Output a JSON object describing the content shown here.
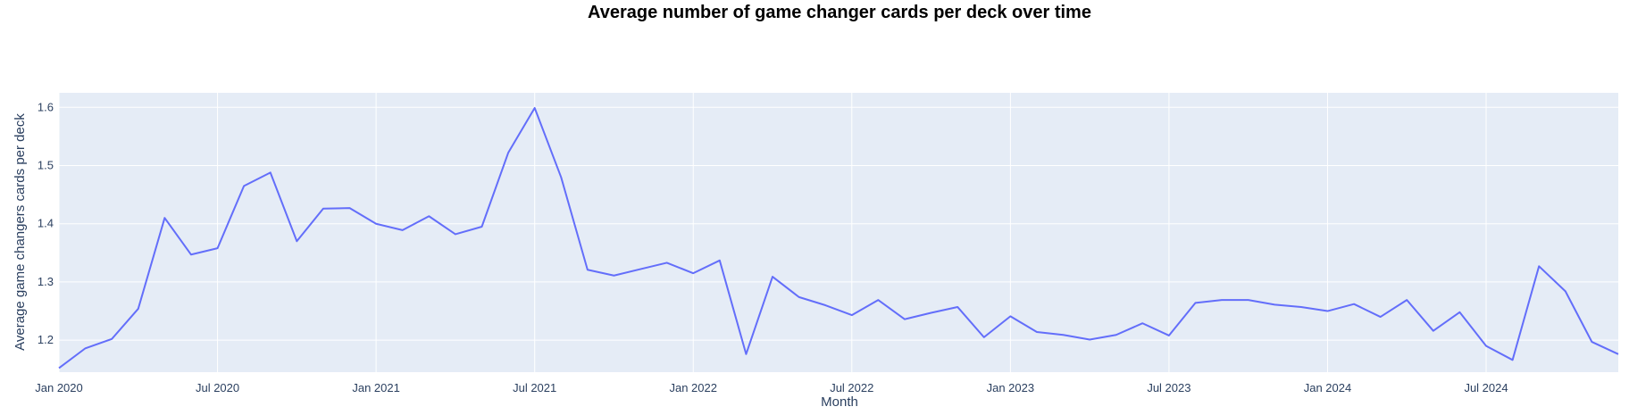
{
  "chart_data": {
    "type": "line",
    "title": "Average number of game changer cards per deck over time",
    "xlabel": "Month",
    "ylabel": "Average game changers cards per deck",
    "x_tick_labels": [
      "Jan 2020",
      "Jul 2020",
      "Jan 2021",
      "Jul 2021",
      "Jan 2022",
      "Jul 2022",
      "Jan 2023",
      "Jul 2023",
      "Jan 2024",
      "Jul 2024"
    ],
    "y_tick_labels": [
      "1.2",
      "1.3",
      "1.4",
      "1.5",
      "1.6"
    ],
    "y_ticks": [
      1.2,
      1.3,
      1.4,
      1.5,
      1.6
    ],
    "ylim": [
      1.145,
      1.625
    ],
    "x_range": [
      "2020-01",
      "2024-12"
    ],
    "grid": true,
    "colors": {
      "plot_background": "#E5ECF6",
      "line": "#636EFA",
      "grid": "#FFFFFF"
    },
    "series": [
      {
        "x": [
          "2020-01",
          "2020-02",
          "2020-03",
          "2020-04",
          "2020-05",
          "2020-06",
          "2020-07",
          "2020-08",
          "2020-09",
          "2020-10",
          "2020-11",
          "2020-12",
          "2021-01",
          "2021-02",
          "2021-03",
          "2021-04",
          "2021-05",
          "2021-06",
          "2021-07",
          "2021-08",
          "2021-09",
          "2021-10",
          "2021-11",
          "2021-12",
          "2022-01",
          "2022-02",
          "2022-03",
          "2022-04",
          "2022-05",
          "2022-06",
          "2022-07",
          "2022-08",
          "2022-09",
          "2022-10",
          "2022-11",
          "2022-12",
          "2023-01",
          "2023-02",
          "2023-03",
          "2023-04",
          "2023-05",
          "2023-06",
          "2023-07",
          "2023-08",
          "2023-09",
          "2023-10",
          "2023-11",
          "2023-12",
          "2024-01",
          "2024-02",
          "2024-03",
          "2024-04",
          "2024-05",
          "2024-06",
          "2024-07",
          "2024-08",
          "2024-09",
          "2024-10",
          "2024-11",
          "2024-12"
        ],
        "values": [
          1.152,
          1.186,
          1.202,
          1.254,
          1.41,
          1.347,
          1.358,
          1.465,
          1.488,
          1.37,
          1.426,
          1.427,
          1.4,
          1.389,
          1.413,
          1.382,
          1.395,
          1.522,
          1.599,
          1.48,
          1.321,
          1.311,
          1.322,
          1.333,
          1.315,
          1.337,
          1.176,
          1.309,
          1.274,
          1.26,
          1.243,
          1.269,
          1.236,
          1.247,
          1.257,
          1.205,
          1.241,
          1.214,
          1.209,
          1.201,
          1.209,
          1.229,
          1.208,
          1.264,
          1.269,
          1.269,
          1.261,
          1.257,
          1.25,
          1.262,
          1.24,
          1.269,
          1.216,
          1.248,
          1.19,
          1.166,
          1.327,
          1.284,
          1.197,
          1.176
        ]
      }
    ]
  }
}
